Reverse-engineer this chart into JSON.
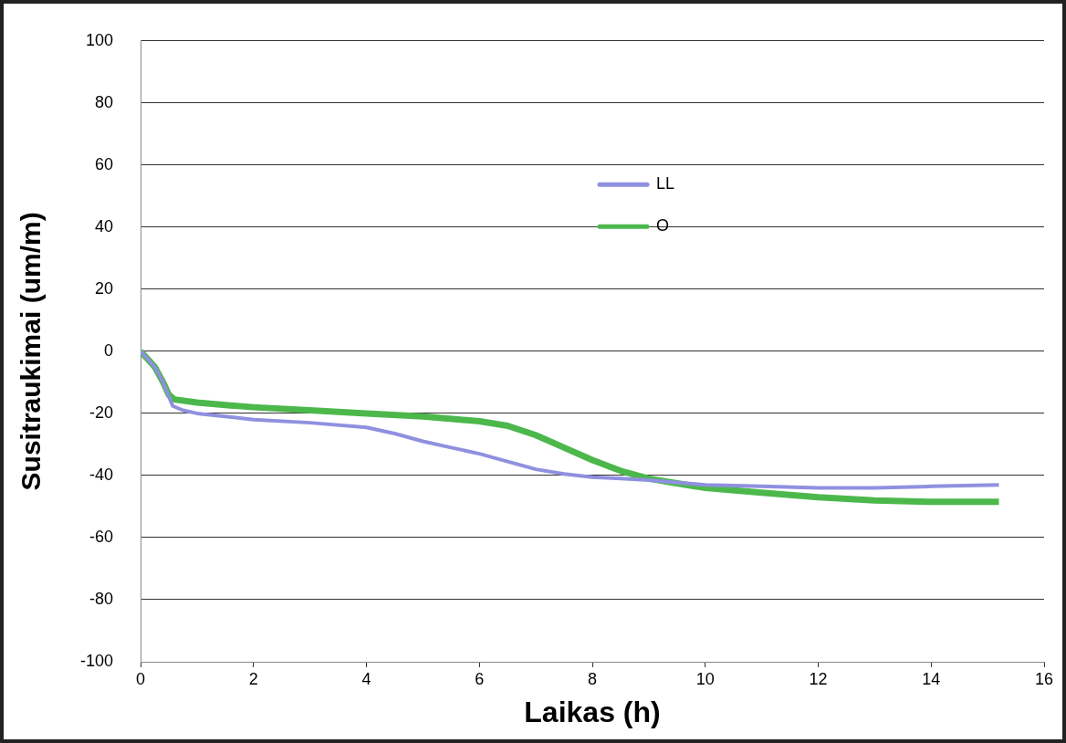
{
  "chart_data": {
    "type": "line",
    "xlabel": "Laikas (h)",
    "ylabel": "Susitraukimai (um/m)",
    "xlim": [
      0,
      16
    ],
    "xticks": [
      0,
      2,
      4,
      6,
      8,
      10,
      12,
      14,
      16
    ],
    "ylim": [
      -100,
      100
    ],
    "yticks": [
      -100,
      -80,
      -60,
      -40,
      -20,
      0,
      20,
      40,
      60,
      80,
      100
    ],
    "grid": "y",
    "legend": "top",
    "marker": "none",
    "line_style": "solid",
    "series": [
      {
        "name": "LL",
        "color": "#9090e0",
        "x": [
          0,
          0.25,
          0.4,
          0.5,
          0.57,
          0.75,
          1,
          1.5,
          2,
          3,
          4,
          4.5,
          5,
          5.5,
          6,
          6.5,
          7,
          7.5,
          8,
          8.5,
          9,
          10,
          11,
          12,
          13,
          14,
          15.2
        ],
        "values": [
          0,
          -5,
          -10,
          -14.6,
          -17.6,
          -19,
          -20,
          -21,
          -22,
          -23,
          -24.5,
          -26.5,
          -29,
          -31,
          -33,
          -35.5,
          -38,
          -39.5,
          -40.5,
          -41,
          -41.5,
          -43,
          -43.5,
          -44,
          -44,
          -43.5,
          -43
        ]
      },
      {
        "name": "O",
        "color": "#4cb84c",
        "x": [
          0,
          0.25,
          0.4,
          0.5,
          0.6,
          1,
          1.5,
          2,
          3,
          4,
          5,
          6,
          6.5,
          7,
          7.5,
          8,
          8.5,
          9,
          9.5,
          10,
          11,
          12,
          13,
          14,
          15.2
        ],
        "values": [
          0,
          -5,
          -10,
          -14,
          -15.5,
          -16.5,
          -17.3,
          -18,
          -19,
          -20,
          -21,
          -22.5,
          -24,
          -27,
          -31,
          -35,
          -38.5,
          -41,
          -42.5,
          -44,
          -45.5,
          -47,
          -48,
          -48.5,
          -48.5
        ]
      }
    ]
  }
}
